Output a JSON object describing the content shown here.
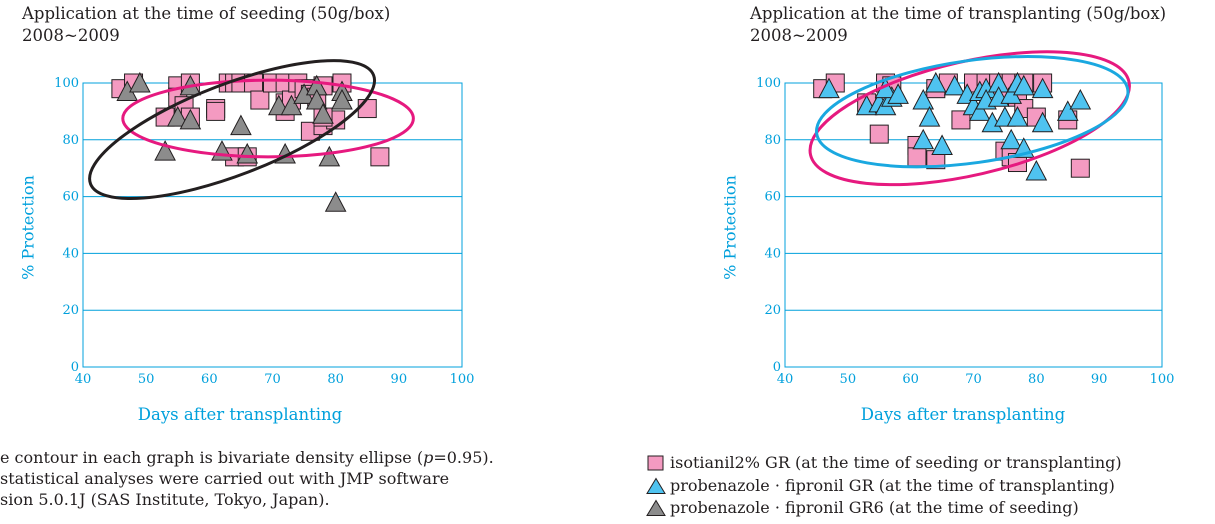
{
  "chart_data": [
    {
      "type": "scatter",
      "title": "Application at the time of seeding (50g/box)",
      "subtitle": "2008~2009",
      "xlabel": "Days after transplanting",
      "ylabel": "% Protection",
      "xlim": [
        40,
        100
      ],
      "ylim": [
        0,
        100
      ],
      "xticks": [
        "40",
        "50",
        "60",
        "70",
        "80",
        "90",
        "100"
      ],
      "yticks": [
        "0",
        "20",
        "40",
        "60",
        "80",
        "100"
      ],
      "grid": "horizontal",
      "series": [
        {
          "name": "isotianil2% GR (at the time of seeding or transplanting)",
          "marker": "square",
          "color": "#f49ac1",
          "points": [
            [
              46,
              98
            ],
            [
              48,
              100
            ],
            [
              55,
              99
            ],
            [
              55,
              95
            ],
            [
              57,
              100
            ],
            [
              56,
              92
            ],
            [
              53,
              88
            ],
            [
              57,
              88
            ],
            [
              61,
              91
            ],
            [
              61,
              90
            ],
            [
              63,
              100
            ],
            [
              64,
              100
            ],
            [
              65,
              100
            ],
            [
              67,
              100
            ],
            [
              68,
              94
            ],
            [
              70,
              100
            ],
            [
              72,
              100
            ],
            [
              72,
              93
            ],
            [
              72,
              90
            ],
            [
              73,
              94
            ],
            [
              74,
              100
            ],
            [
              75,
              98
            ],
            [
              76,
              96
            ],
            [
              77,
              95
            ],
            [
              78,
              99
            ],
            [
              81,
              100
            ],
            [
              76,
              83
            ],
            [
              78,
              85
            ],
            [
              80,
              87
            ],
            [
              85,
              91
            ],
            [
              64,
              74
            ],
            [
              66,
              74
            ],
            [
              87,
              74
            ],
            [
              78,
              88
            ]
          ]
        },
        {
          "name": "probenazole · fipronil GR6 (at the time of seeding)",
          "marker": "triangle",
          "color": "#8c8c8c",
          "points": [
            [
              47,
              97
            ],
            [
              49,
              100
            ],
            [
              57,
              99
            ],
            [
              55,
              88
            ],
            [
              57,
              87
            ],
            [
              53,
              76
            ],
            [
              62,
              76
            ],
            [
              65,
              85
            ],
            [
              66,
              75
            ],
            [
              72,
              75
            ],
            [
              71,
              92
            ],
            [
              73,
              92
            ],
            [
              75,
              96
            ],
            [
              77,
              99
            ],
            [
              77,
              94
            ],
            [
              78,
              89
            ],
            [
              81,
              97
            ],
            [
              81,
              94
            ],
            [
              79,
              74
            ],
            [
              80,
              58
            ]
          ]
        }
      ],
      "ellipses": [
        {
          "series": "isotianil2% GR (at the time of seeding or transplanting)",
          "color": "#e6197f",
          "cx": 69.3,
          "cy": 87.5,
          "rx": 23,
          "ry": 13.5,
          "angle": 0
        },
        {
          "series": "probenazole · fipronil GR6 (at the time of seeding)",
          "color": "#231f20",
          "cx": 63.6,
          "cy": 83.6,
          "rx": 24,
          "ry": 16,
          "angle": -21
        }
      ]
    },
    {
      "type": "scatter",
      "title": "Application at the time of transplanting (50g/box)",
      "subtitle": "2008~2009",
      "xlabel": "Days after transplanting",
      "ylabel": "% Protection",
      "xlim": [
        40,
        100
      ],
      "ylim": [
        0,
        100
      ],
      "xticks": [
        "40",
        "50",
        "60",
        "70",
        "80",
        "90",
        "100"
      ],
      "yticks": [
        "0",
        "20",
        "40",
        "60",
        "80",
        "100"
      ],
      "grid": "horizontal",
      "series": [
        {
          "name": "isotianil2% GR (at the time of seeding or transplanting)",
          "marker": "square",
          "color": "#f49ac1",
          "points": [
            [
              46,
              98
            ],
            [
              48,
              100
            ],
            [
              53,
              93
            ],
            [
              55,
              82
            ],
            [
              56,
              100
            ],
            [
              57,
              99
            ],
            [
              61,
              78
            ],
            [
              61,
              74
            ],
            [
              64,
              73
            ],
            [
              64,
              98
            ],
            [
              66,
              100
            ],
            [
              68,
              87
            ],
            [
              70,
              100
            ],
            [
              72,
              100
            ],
            [
              74,
              98
            ],
            [
              74,
              100
            ],
            [
              75,
              76
            ],
            [
              76,
              74
            ],
            [
              76,
              100
            ],
            [
              77,
              95
            ],
            [
              77,
              72
            ],
            [
              78,
              100
            ],
            [
              78,
              91
            ],
            [
              81,
              100
            ],
            [
              80,
              88
            ],
            [
              85,
              87
            ],
            [
              87,
              70
            ]
          ]
        },
        {
          "name": "probenazole · fipronil GR (at the time of transplanting)",
          "marker": "triangle",
          "color": "#4fc3f0",
          "points": [
            [
              47,
              98
            ],
            [
              53,
              92
            ],
            [
              55,
              93
            ],
            [
              56,
              92
            ],
            [
              57,
              95
            ],
            [
              56,
              98
            ],
            [
              58,
              96
            ],
            [
              62,
              94
            ],
            [
              62,
              80
            ],
            [
              64,
              100
            ],
            [
              65,
              78
            ],
            [
              63,
              88
            ],
            [
              67,
              99
            ],
            [
              69,
              96
            ],
            [
              70,
              92
            ],
            [
              71,
              90
            ],
            [
              71,
              97
            ],
            [
              72,
              98
            ],
            [
              72,
              94
            ],
            [
              73,
              86
            ],
            [
              74,
              100
            ],
            [
              74,
              95
            ],
            [
              75,
              88
            ],
            [
              76,
              96
            ],
            [
              77,
              100
            ],
            [
              76,
              80
            ],
            [
              78,
              77
            ],
            [
              77,
              88
            ],
            [
              80,
              69
            ],
            [
              81,
              98
            ],
            [
              81,
              86
            ],
            [
              85,
              90
            ],
            [
              87,
              94
            ],
            [
              78,
              99
            ]
          ]
        }
      ],
      "ellipses": [
        {
          "series": "isotianil2% GR (at the time of seeding or transplanting)",
          "color": "#e6197f",
          "cx": 69.4,
          "cy": 87.6,
          "rx": 26,
          "ry": 20,
          "angle": -13
        },
        {
          "series": "probenazole · fipronil GR (at the time of transplanting)",
          "color": "#1aa8e0",
          "cx": 69.8,
          "cy": 89.9,
          "rx": 25,
          "ry": 18,
          "angle": -8
        }
      ]
    }
  ],
  "note": {
    "line1": "e contour in each graph is bivariate density ellipse (",
    "p_symbol": "p",
    "line1_end": "=0.95).",
    "line2": "statistical analyses were carried out with JMP software",
    "line3": "sion 5.0.1J (SAS Institute, Tokyo, Japan)."
  },
  "legend": [
    {
      "marker": "square",
      "color": "#f49ac1",
      "label": "isotianil2% GR (at the time of seeding or transplanting)"
    },
    {
      "marker": "triangle",
      "color": "#4fc3f0",
      "label": "probenazole · fipronil GR (at the time of transplanting)"
    },
    {
      "marker": "triangle",
      "color": "#8c8c8c",
      "label": "probenazole · fipronil GR6 (at the time of seeding)"
    }
  ]
}
